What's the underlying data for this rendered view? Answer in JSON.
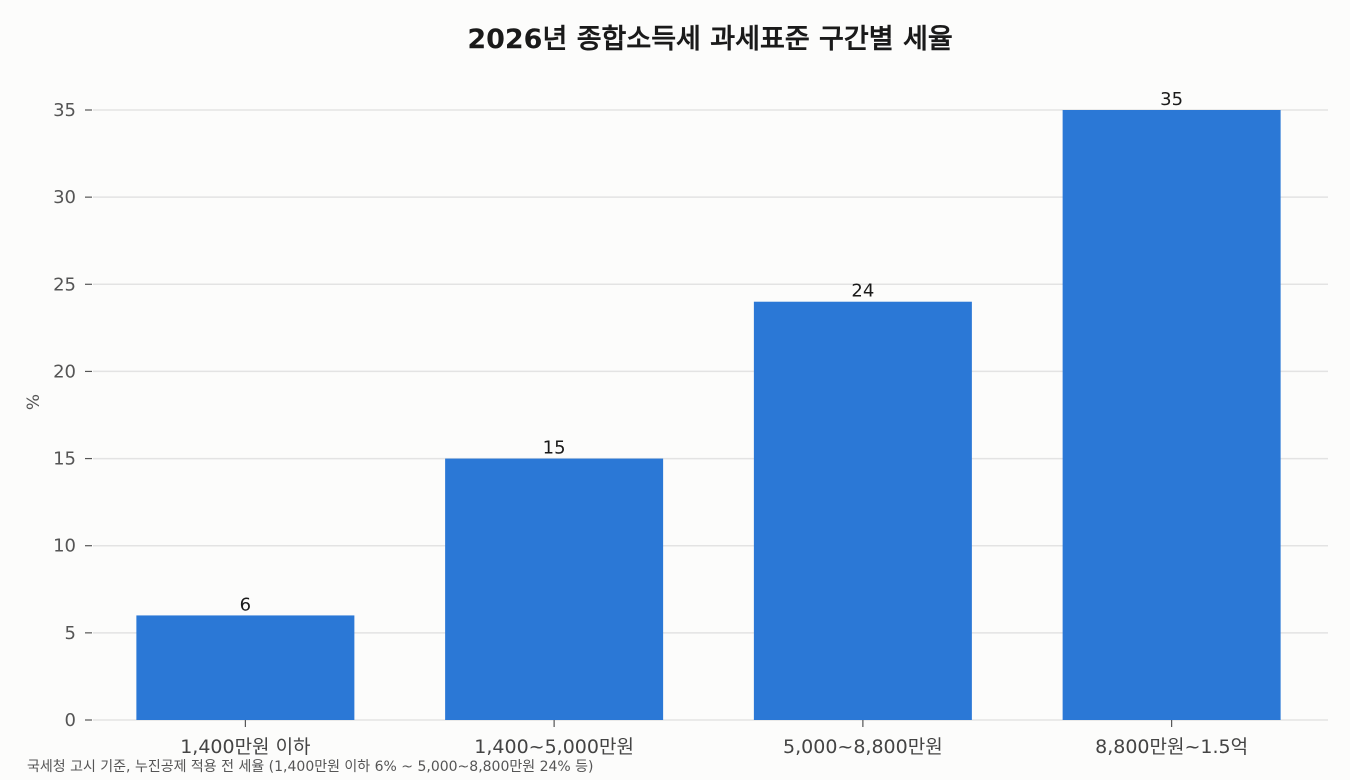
{
  "chart_data": {
    "type": "bar",
    "title": "2026년 종합소득세 과세표준 구간별 세율",
    "ylabel": "%",
    "xlabel": "",
    "categories": [
      "1,400만원 이하",
      "1,400~5,000만원",
      "5,000~8,800만원",
      "8,800만원~1.5억"
    ],
    "values": [
      6,
      15,
      24,
      35
    ],
    "ylim": [
      0,
      35
    ],
    "yticks": [
      0,
      5,
      10,
      15,
      20,
      25,
      30,
      35
    ],
    "grid": "horizontal",
    "bar_color": "#2b78d6",
    "data_labels": [
      "6",
      "15",
      "24",
      "35"
    ],
    "footnote": "국세청 고시 기준, 누진공제 적용 전 세율 (1,400만원 이하 6% ~ 5,000~8,800만원 24% 등)"
  },
  "colors": {
    "background": "#fcfcfb",
    "bar": "#2b78d6",
    "grid": "#e3e3e3"
  }
}
